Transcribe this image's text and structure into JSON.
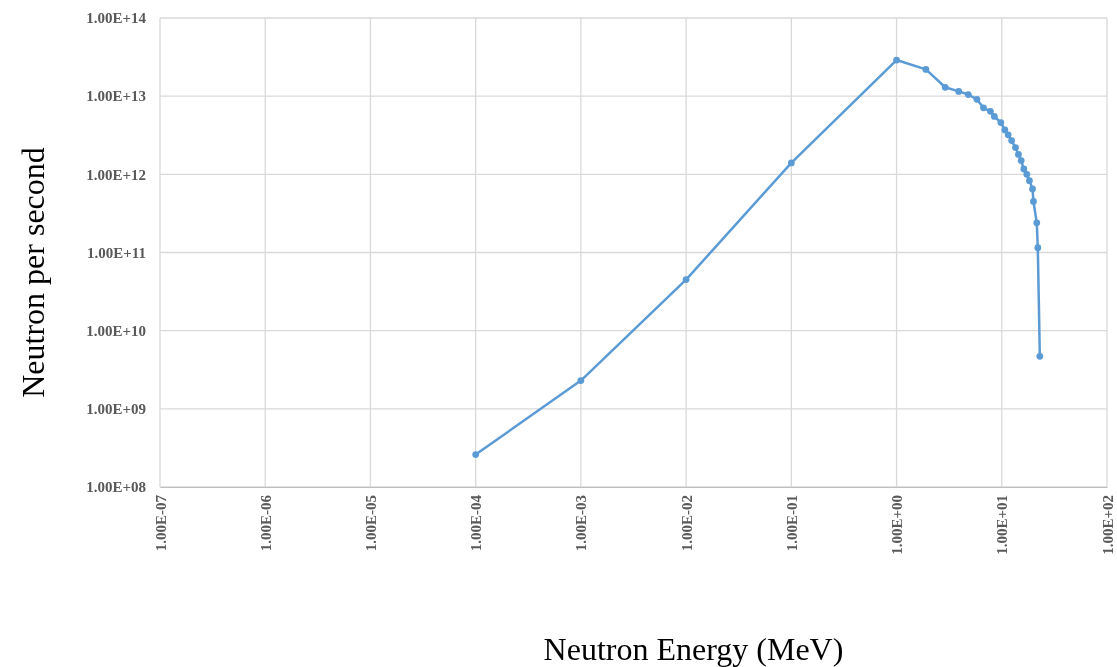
{
  "chart_data": {
    "type": "line",
    "xlabel": "Neutron Energy (MeV)",
    "ylabel": "Neutron per second",
    "log": "xy",
    "grid": true,
    "marker": "circle",
    "line_style": "solid",
    "xlim": [
      1e-07,
      100
    ],
    "ylim": [
      100000000.0,
      100000000000000.0
    ],
    "xticks": [
      {
        "value": 1e-07,
        "label": "1.00E-07"
      },
      {
        "value": 1e-06,
        "label": "1.00E-06"
      },
      {
        "value": 1e-05,
        "label": "1.00E-05"
      },
      {
        "value": 0.0001,
        "label": "1.00E-04"
      },
      {
        "value": 0.001,
        "label": "1.00E-03"
      },
      {
        "value": 0.01,
        "label": "1.00E-02"
      },
      {
        "value": 0.1,
        "label": "1.00E-01"
      },
      {
        "value": 1,
        "label": "1.00E+00"
      },
      {
        "value": 10,
        "label": "1.00E+01"
      },
      {
        "value": 100,
        "label": "1.00E+02"
      }
    ],
    "yticks": [
      {
        "value": 100000000.0,
        "label": "1.00E+08"
      },
      {
        "value": 1000000000.0,
        "label": "1.00E+09"
      },
      {
        "value": 10000000000.0,
        "label": "1.00E+10"
      },
      {
        "value": 100000000000.0,
        "label": "1.00E+11"
      },
      {
        "value": 1000000000000.0,
        "label": "1.00E+12"
      },
      {
        "value": 10000000000000.0,
        "label": "1.00E+13"
      },
      {
        "value": 100000000000000.0,
        "label": "1.00E+14"
      }
    ],
    "x": [
      0.0001,
      0.001,
      0.01,
      0.1,
      1.0,
      1.9,
      2.9,
      3.9,
      4.8,
      5.8,
      6.7,
      7.8,
      8.5,
      9.8,
      10.7,
      11.5,
      12.4,
      13.5,
      14.4,
      15.3,
      16.2,
      17.3,
      18.3,
      19.6,
      20.0,
      21.5,
      22,
      23
    ],
    "series": [
      {
        "color": "#5b9bd5",
        "values": [
          260000000.0,
          2300000000.0,
          45000000000.0,
          1400000000000.0,
          29000000000000.0,
          22000000000000.0,
          13000000000000.0,
          11500000000000.0,
          10500000000000.0,
          9100000000000.0,
          7100000000000.0,
          6400000000000.0,
          5500000000000.0,
          4600000000000.0,
          3700000000000.0,
          3200000000000.0,
          2700000000000.0,
          2200000000000.0,
          1800000000000.0,
          1500000000000.0,
          1170000000000.0,
          1000000000000.0,
          830000000000.0,
          650000000000.0,
          450000000000.0,
          240000000000.0,
          115000000000.0,
          4700000000.0
        ]
      }
    ]
  }
}
